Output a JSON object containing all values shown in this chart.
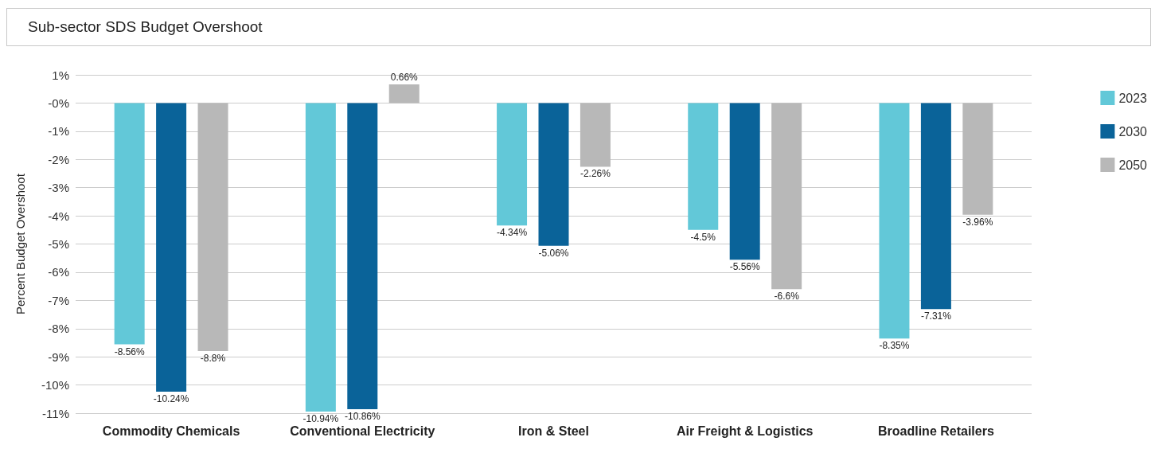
{
  "chart_data": {
    "type": "bar",
    "title": "Sub-sector SDS Budget Overshoot",
    "ylabel": "Percent Budget Overshoot",
    "categories": [
      "Commodity Chemicals",
      "Conventional Electricity",
      "Iron & Steel",
      "Air Freight & Logistics",
      "Broadline Retailers"
    ],
    "series": [
      {
        "name": "2023",
        "color": "#62c8d8",
        "values": [
          -8.56,
          -10.94,
          -4.34,
          -4.5,
          -8.35
        ],
        "value_labels": [
          "-8.56%",
          "-10.94%",
          "-4.34%",
          "-4.5%",
          "-8.35%"
        ]
      },
      {
        "name": "2030",
        "color": "#0a6399",
        "values": [
          -10.24,
          -10.86,
          -5.06,
          -5.56,
          -7.31
        ],
        "value_labels": [
          "-10.24%",
          "-10.86%",
          "-5.06%",
          "-5.56%",
          "-7.31%"
        ]
      },
      {
        "name": "2050",
        "color": "#b8b8b8",
        "values": [
          -8.8,
          0.66,
          -2.26,
          -6.6,
          -3.96
        ],
        "value_labels": [
          "-8.8%",
          "0.66%",
          "-2.26%",
          "-6.6%",
          "-3.96%"
        ]
      }
    ],
    "ylim": [
      -11,
      1
    ],
    "yticks": [
      {
        "value": 1,
        "label": "1%"
      },
      {
        "value": 0,
        "label": "-0%"
      },
      {
        "value": -1,
        "label": "-1%"
      },
      {
        "value": -2,
        "label": "-2%"
      },
      {
        "value": -3,
        "label": "-3%"
      },
      {
        "value": -4,
        "label": "-4%"
      },
      {
        "value": -5,
        "label": "-5%"
      },
      {
        "value": -6,
        "label": "-6%"
      },
      {
        "value": -7,
        "label": "-7%"
      },
      {
        "value": -8,
        "label": "-8%"
      },
      {
        "value": -9,
        "label": "-9%"
      },
      {
        "value": -10,
        "label": "-10%"
      },
      {
        "value": -11,
        "label": "-11%"
      }
    ],
    "grid": "y",
    "legend": "right"
  }
}
